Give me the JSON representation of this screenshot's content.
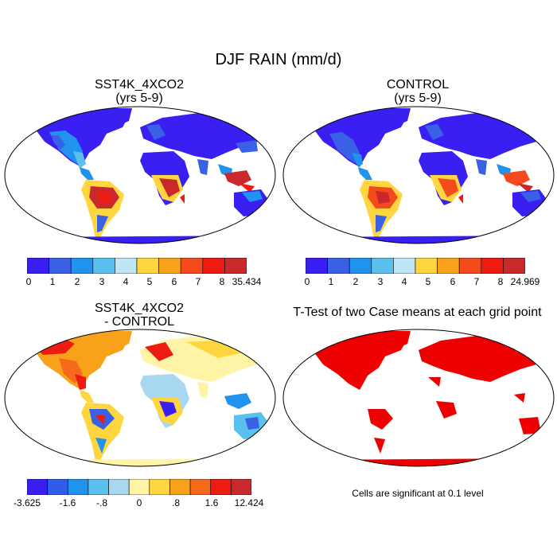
{
  "title": "DJF RAIN (mm/d)",
  "panels": [
    {
      "title": "SST4K_4XCO2\n(yrs 5-9)",
      "type": "field",
      "colorbar": "absolute"
    },
    {
      "title": "CONTROL\n(yrs 5-9)",
      "type": "field",
      "colorbar": "absolute"
    },
    {
      "title": "SST4K_4XCO2\n- CONTROL",
      "type": "difference",
      "colorbar": "difference"
    },
    {
      "title": "T-Test of two Case means at each grid point",
      "type": "significance"
    }
  ],
  "colorbars": {
    "panel1": {
      "colors": [
        "#3a1ff2",
        "#3a60e6",
        "#1f93ee",
        "#5ac0ee",
        "#bfe6f7",
        "#ffd540",
        "#f7a21a",
        "#f44a1c",
        "#ee1b10",
        "#c9282d"
      ],
      "labels": [
        "0",
        "1",
        "2",
        "3",
        "4",
        "5",
        "6",
        "7",
        "8",
        "35.434"
      ]
    },
    "panel2": {
      "colors": [
        "#3a1ff2",
        "#3a60e6",
        "#1f93ee",
        "#5ac0ee",
        "#bfe6f7",
        "#ffd540",
        "#f7a21a",
        "#f44a1c",
        "#ee1b10",
        "#c9282d"
      ],
      "labels": [
        "0",
        "1",
        "2",
        "3",
        "4",
        "5",
        "6",
        "7",
        "8",
        "24.969"
      ]
    },
    "panel3": {
      "colors": [
        "#3a1ff2",
        "#2f5ce8",
        "#1f93ee",
        "#5ac0ee",
        "#a8d8f0",
        "#fff3a6",
        "#ffd540",
        "#f7a21a",
        "#f46a1a",
        "#ee1b10",
        "#c9282d"
      ],
      "labels": [
        "-3.625",
        "-1.6",
        "-.8",
        "0",
        ".8",
        "1.6",
        "12.424"
      ]
    },
    "significance_color": "#ee0000"
  },
  "note": "Cells are significant at 0.1 level"
}
